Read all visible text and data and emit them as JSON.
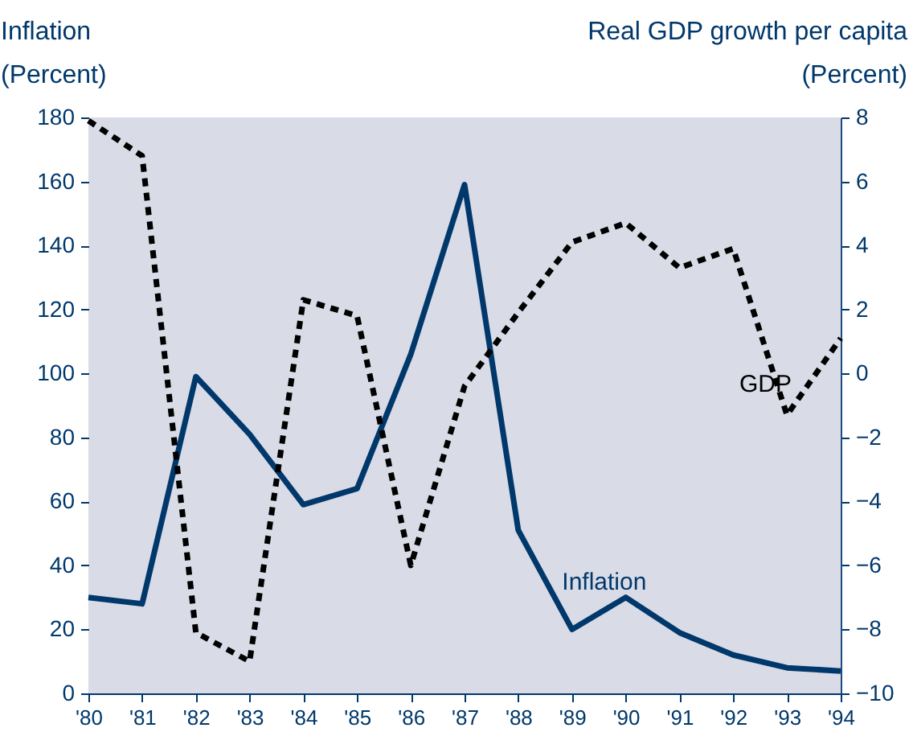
{
  "chart_data": {
    "type": "line",
    "ylabel": "Inflation\n(Percent)",
    "y2label": "Real GDP growth per capita\n(Percent)",
    "categories": [
      "'80",
      "'81",
      "'82",
      "'83",
      "'84",
      "'85",
      "'86",
      "'87",
      "'88",
      "'89",
      "'90",
      "'91",
      "'92",
      "'93",
      "'94"
    ],
    "ylim": [
      0,
      180
    ],
    "yticks": [
      0,
      20,
      40,
      60,
      80,
      100,
      120,
      140,
      160,
      180
    ],
    "y2lim": [
      -10,
      8
    ],
    "y2ticks": [
      -10,
      -8,
      -6,
      -4,
      -2,
      0,
      2,
      4,
      6,
      8
    ],
    "series": [
      {
        "name": "Inflation",
        "color": "#00386b",
        "line_style": "solid",
        "values": [
          30,
          28,
          99,
          81,
          59,
          64,
          106,
          159,
          51,
          20,
          30,
          19,
          12,
          8,
          7
        ]
      },
      {
        "name": "GDP",
        "color": "#000000",
        "line_style": "dashed",
        "axis": "y2",
        "values": [
          7.9,
          6.8,
          -8.1,
          -9.0,
          2.3,
          1.8,
          -6.0,
          -0.4,
          1.9,
          4.1,
          4.7,
          3.3,
          3.9,
          -1.3,
          1.1
        ]
      }
    ]
  }
}
